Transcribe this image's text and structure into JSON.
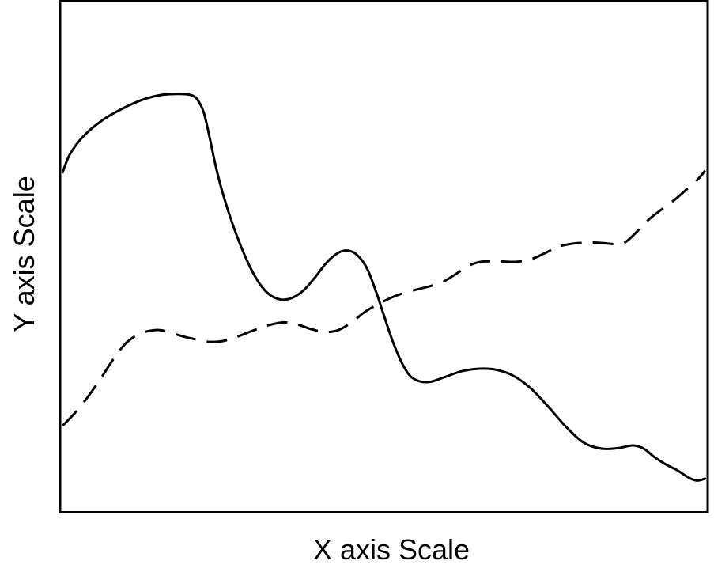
{
  "chart_data": {
    "type": "line",
    "title": "",
    "xlabel": "X axis Scale",
    "ylabel": "Y axis Scale",
    "xlim": [
      0,
      100
    ],
    "ylim": [
      0,
      100
    ],
    "grid": false,
    "legend": "none",
    "series": [
      {
        "style": "solid",
        "color": "#000000",
        "points": [
          [
            0.4,
            66.6
          ],
          [
            1.5,
            70.1
          ],
          [
            3.6,
            73.7
          ],
          [
            6.6,
            76.9
          ],
          [
            9.6,
            79.1
          ],
          [
            12.6,
            80.8
          ],
          [
            15.6,
            81.8
          ],
          [
            18.6,
            82.0
          ],
          [
            20.4,
            81.7
          ],
          [
            21.3,
            80.7
          ],
          [
            22.2,
            78.3
          ],
          [
            23.1,
            73.4
          ],
          [
            24.0,
            68.0
          ],
          [
            25.0,
            63.0
          ],
          [
            26.7,
            56.2
          ],
          [
            28.6,
            50.0
          ],
          [
            30.4,
            45.5
          ],
          [
            32.1,
            42.8
          ],
          [
            34.0,
            41.6
          ],
          [
            35.8,
            41.9
          ],
          [
            37.6,
            43.4
          ],
          [
            39.4,
            46.0
          ],
          [
            41.2,
            48.9
          ],
          [
            43.0,
            50.8
          ],
          [
            44.5,
            51.2
          ],
          [
            45.9,
            50.3
          ],
          [
            47.4,
            47.7
          ],
          [
            48.8,
            43.1
          ],
          [
            50.1,
            38.1
          ],
          [
            51.3,
            33.6
          ],
          [
            52.6,
            29.6
          ],
          [
            53.9,
            26.8
          ],
          [
            55.3,
            25.6
          ],
          [
            57.1,
            25.4
          ],
          [
            59.3,
            26.3
          ],
          [
            62.0,
            27.5
          ],
          [
            64.8,
            28.0
          ],
          [
            67.3,
            27.8
          ],
          [
            70.0,
            26.6
          ],
          [
            72.7,
            24.1
          ],
          [
            75.4,
            20.5
          ],
          [
            78.1,
            16.6
          ],
          [
            80.8,
            13.5
          ],
          [
            83.5,
            12.3
          ],
          [
            86.2,
            12.4
          ],
          [
            88.4,
            12.9
          ],
          [
            90.1,
            12.3
          ],
          [
            91.8,
            10.6
          ],
          [
            93.5,
            9.2
          ],
          [
            95.2,
            8.1
          ],
          [
            97.2,
            6.5
          ],
          [
            98.4,
            6.0
          ],
          [
            99.6,
            6.4
          ]
        ]
      },
      {
        "style": "dashed",
        "color": "#000000",
        "points": [
          [
            0.4,
            16.8
          ],
          [
            2.5,
            19.6
          ],
          [
            4.6,
            23.0
          ],
          [
            6.6,
            26.7
          ],
          [
            8.4,
            30.2
          ],
          [
            10.4,
            33.3
          ],
          [
            12.6,
            35.0
          ],
          [
            14.8,
            35.6
          ],
          [
            16.6,
            35.3
          ],
          [
            18.3,
            34.6
          ],
          [
            20.4,
            33.9
          ],
          [
            22.8,
            33.3
          ],
          [
            25.0,
            33.4
          ],
          [
            27.2,
            34.2
          ],
          [
            29.6,
            35.4
          ],
          [
            32.1,
            36.5
          ],
          [
            34.4,
            37.1
          ],
          [
            36.6,
            36.7
          ],
          [
            38.7,
            35.8
          ],
          [
            40.9,
            35.2
          ],
          [
            43.0,
            35.6
          ],
          [
            45.1,
            37.2
          ],
          [
            47.1,
            39.2
          ],
          [
            49.3,
            40.8
          ],
          [
            51.6,
            42.2
          ],
          [
            54.0,
            43.2
          ],
          [
            56.8,
            44.1
          ],
          [
            59.0,
            45.0
          ],
          [
            61.0,
            46.5
          ],
          [
            62.9,
            48.1
          ],
          [
            64.9,
            49.0
          ],
          [
            67.7,
            49.1
          ],
          [
            70.4,
            49.0
          ],
          [
            72.9,
            49.6
          ],
          [
            75.0,
            50.8
          ],
          [
            77.0,
            52.0
          ],
          [
            79.3,
            52.6
          ],
          [
            81.6,
            52.8
          ],
          [
            83.7,
            52.7
          ],
          [
            85.6,
            52.5
          ],
          [
            87.2,
            52.8
          ],
          [
            88.9,
            54.7
          ],
          [
            90.8,
            57.2
          ],
          [
            92.9,
            59.3
          ],
          [
            94.9,
            61.2
          ],
          [
            96.8,
            63.3
          ],
          [
            98.4,
            65.1
          ],
          [
            99.6,
            66.9
          ]
        ]
      }
    ]
  }
}
